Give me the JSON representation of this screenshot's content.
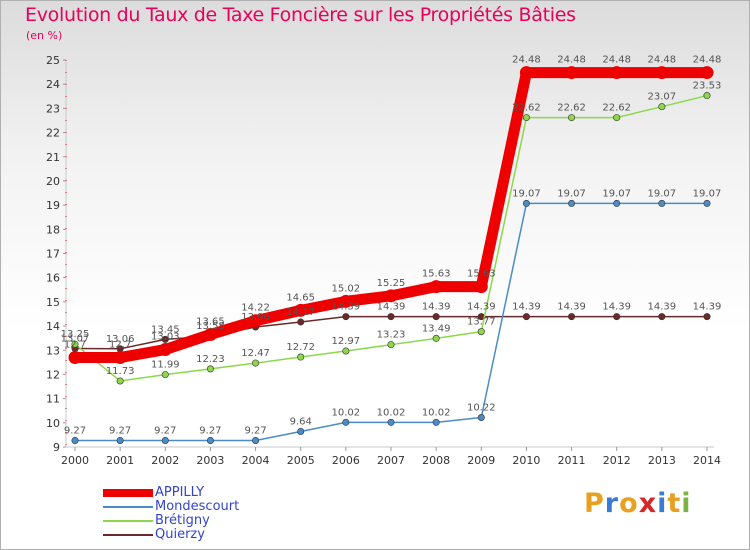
{
  "title": "Evolution du Taux de Taxe Foncière sur les Propriétés Bâties",
  "unit_label": "(en %)",
  "logo": {
    "text": "Proxiti",
    "letters": [
      "P",
      "r",
      "o",
      "x",
      "i",
      "t",
      "i"
    ],
    "colors": [
      "#e8a020",
      "#3a7bd5",
      "#e8a020",
      "#d62828",
      "#3a7bd5",
      "#e8a020",
      "#7cb342"
    ]
  },
  "chart_data": {
    "type": "line",
    "title": "Evolution du Taux de Taxe Foncière sur les Propriétés Bâties",
    "ylabel": "(en %)",
    "xlabel": "",
    "ylim": [
      9,
      25
    ],
    "yticks": [
      9,
      10,
      11,
      12,
      13,
      14,
      15,
      16,
      17,
      18,
      19,
      20,
      21,
      22,
      23,
      24,
      25
    ],
    "categories": [
      "2000",
      "2001",
      "2002",
      "2003",
      "2004",
      "2005",
      "2006",
      "2007",
      "2008",
      "2009",
      "2010",
      "2011",
      "2012",
      "2013",
      "2014"
    ],
    "series": [
      {
        "name": "Quierzy",
        "color": "#6b2a2a",
        "values": [
          13.07,
          13.06,
          13.45,
          13.58,
          13.96,
          14.17,
          14.39,
          14.39,
          14.39,
          14.39,
          14.39,
          14.39,
          14.39,
          14.39,
          14.39
        ],
        "labels": [
          "13.07",
          "13.06",
          "13.45",
          "13.58",
          "13.96",
          "14.17",
          "14.39",
          "14.39",
          "14.39",
          "14.39",
          "14.39",
          "14.39",
          "14.39",
          "14.39",
          "14.39"
        ]
      },
      {
        "name": "Mondescourt",
        "color": "#4a8cc8",
        "values": [
          9.27,
          9.27,
          9.27,
          9.27,
          9.27,
          9.64,
          10.02,
          10.02,
          10.02,
          10.22,
          19.07,
          19.07,
          19.07,
          19.07,
          19.07
        ],
        "labels": [
          "9.27",
          "9.27",
          "9.27",
          "9.27",
          "9.27",
          "9.64",
          "10.02",
          "10.02",
          "10.02",
          "10.22",
          "19.07",
          "19.07",
          "19.07",
          "19.07",
          "19.07"
        ]
      },
      {
        "name": "Brétigny",
        "color": "#8dd84a",
        "values": [
          13.25,
          11.73,
          11.99,
          12.23,
          12.47,
          12.72,
          12.97,
          13.23,
          13.49,
          13.77,
          22.62,
          22.62,
          22.62,
          23.07,
          23.53
        ],
        "labels": [
          "13.25",
          "11.73",
          "11.99",
          "12.23",
          "12.47",
          "12.72",
          "12.97",
          "13.23",
          "13.49",
          "13.77",
          "22.62",
          "22.62",
          "22.62",
          "23.07",
          "23.53"
        ]
      },
      {
        "name": "APPILLY",
        "color": "#ee0000",
        "values": [
          12.7,
          12.7,
          13.03,
          13.65,
          14.22,
          14.65,
          15.02,
          15.25,
          15.63,
          15.63,
          24.48,
          24.48,
          24.48,
          24.48,
          24.48
        ],
        "labels": [
          "12.7",
          "12.7",
          "13.03",
          "13.65",
          "14.22",
          "14.65",
          "15.02",
          "15.25",
          "15.63",
          "15.63",
          "24.48",
          "24.48",
          "24.48",
          "24.48",
          "24.48"
        ]
      }
    ],
    "legend": [
      {
        "name": "APPILLY",
        "color": "#ee0000"
      },
      {
        "name": "Mondescourt",
        "color": "#4a8cc8"
      },
      {
        "name": "Brétigny",
        "color": "#8dd84a"
      },
      {
        "name": "Quierzy",
        "color": "#6b2a2a"
      }
    ],
    "legend_position": "bottom-left",
    "grid": false
  }
}
